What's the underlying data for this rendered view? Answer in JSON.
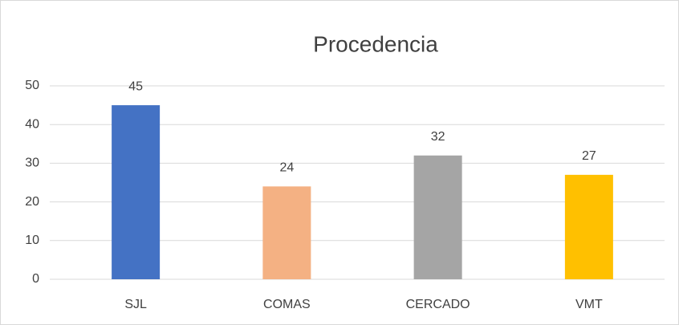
{
  "chart_data": {
    "type": "bar",
    "title": "Procedencia",
    "categories": [
      "SJL",
      "COMAS",
      "CERCADO",
      "VMT"
    ],
    "values": [
      45,
      24,
      32,
      27
    ],
    "colors": [
      "#4472c4",
      "#f4b183",
      "#a5a5a5",
      "#ffc000"
    ],
    "ylim": [
      0,
      50
    ],
    "yticks": [
      0,
      10,
      20,
      30,
      40,
      50
    ],
    "grid": true
  }
}
